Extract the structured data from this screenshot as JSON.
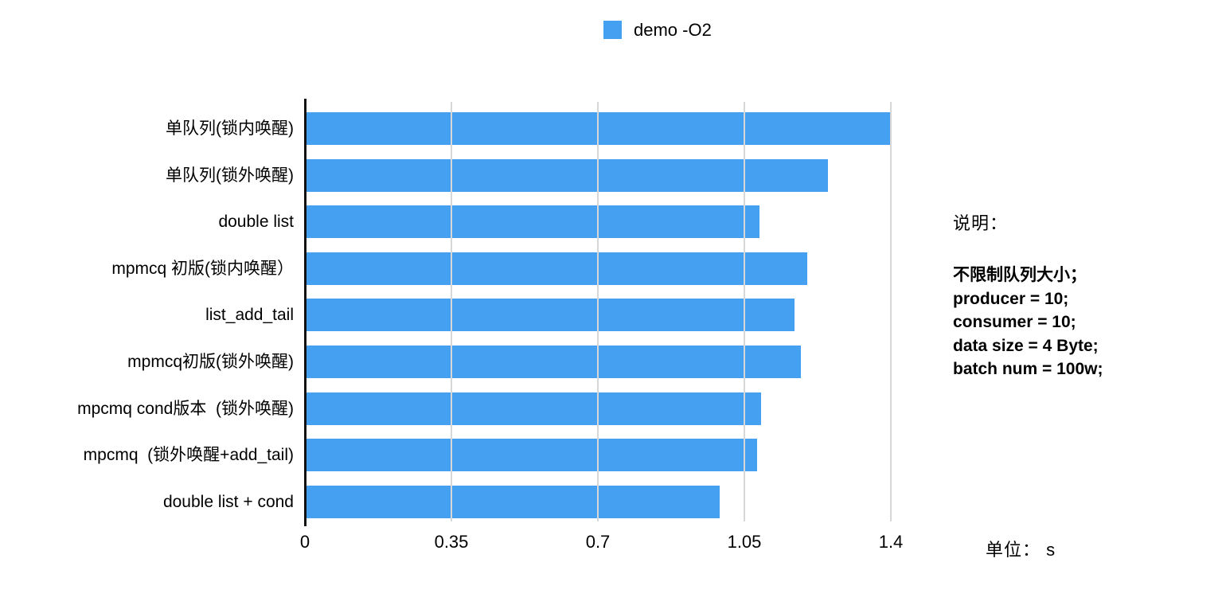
{
  "legend": {
    "label": "demo -O2"
  },
  "chart_data": {
    "type": "bar",
    "orientation": "horizontal",
    "title": "",
    "legend_entries": [
      "demo -O2"
    ],
    "legend_position": "top-center",
    "categories": [
      "单队列(锁内唤醒)",
      "单队列(锁外唤醒)",
      "double list",
      "mpmcq 初版(锁内唤醒）",
      "list_add_tail",
      "mpmcq初版(锁外唤醒)",
      "mpcmq cond版本  (锁外唤醒)",
      "mpcmq  (锁外唤醒+add_tail)",
      "double list + cond"
    ],
    "series": [
      {
        "name": "demo -O2",
        "values": [
          1.4,
          1.25,
          1.085,
          1.2,
          1.17,
          1.185,
          1.09,
          1.08,
          0.99
        ]
      }
    ],
    "xlim": [
      0,
      1.4
    ],
    "x_ticks": [
      0,
      0.35,
      0.7,
      1.05,
      1.4
    ],
    "x_tick_labels": [
      "0",
      "0.35",
      "0.7",
      "1.05",
      "1.4"
    ],
    "grid": "vertical-gridlines-only",
    "unit": "s"
  },
  "annotation": {
    "heading": "说明：",
    "lines": [
      "不限制队列大小；",
      "producer = 10;",
      "consumer = 10;",
      "data size = 4 Byte;",
      "batch num = 100w;"
    ]
  },
  "unit_label": "单位： s",
  "colors": {
    "bar": "#46A0F2",
    "grid": "#D7D7D7",
    "axis": "#111111",
    "text": "#000000"
  }
}
